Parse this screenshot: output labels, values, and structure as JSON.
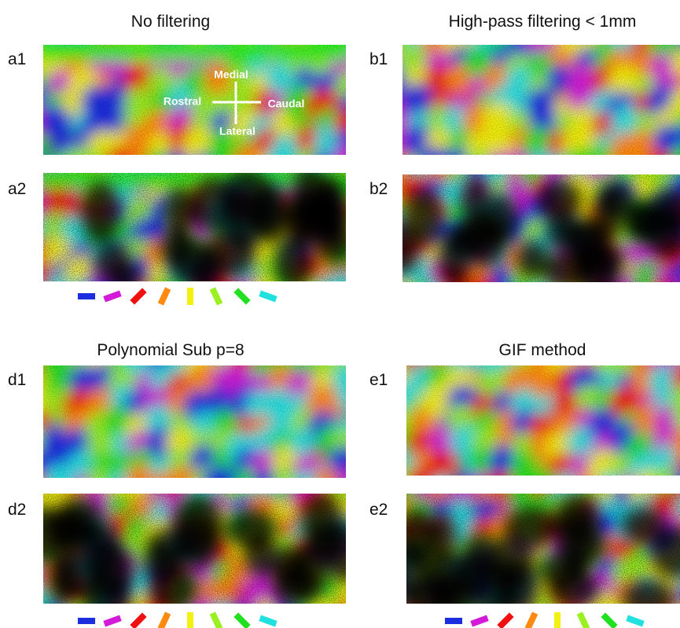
{
  "panels": [
    {
      "title": "No filtering",
      "top_label": "a1",
      "bottom_label": "a2"
    },
    {
      "title": "High-pass filtering < 1mm",
      "top_label": "b1",
      "bottom_label": "b2"
    },
    {
      "title": "Polynomial Sub p=8",
      "top_label": "d1",
      "bottom_label": "d2"
    },
    {
      "title": "GIF method",
      "top_label": "e1",
      "bottom_label": "e2"
    }
  ],
  "annotations": {
    "medial": "Medial",
    "rostral": "Rostral",
    "caudal": "Caudal",
    "lateral": "Lateral"
  }
}
